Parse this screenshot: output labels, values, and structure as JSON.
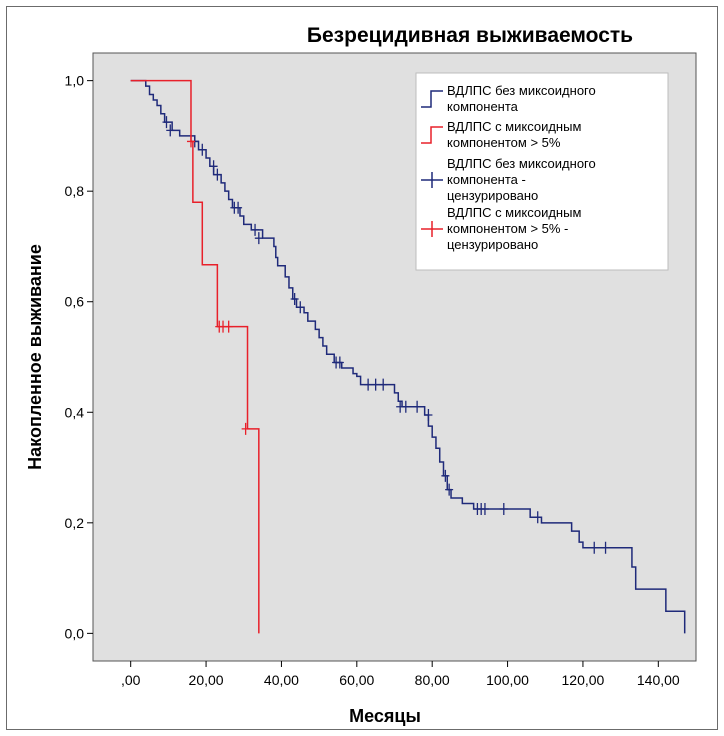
{
  "chart_data": {
    "type": "line",
    "subtype": "kaplan-meier",
    "title": "Безрецидивная выживаемость",
    "xlabel": "Месяцы",
    "ylabel": "Накопленное выживание",
    "xlim": [
      -10,
      150
    ],
    "ylim": [
      -0.05,
      1.05
    ],
    "xticks": [
      0,
      20,
      40,
      60,
      80,
      100,
      120,
      140
    ],
    "xtick_labels": [
      ",00",
      "20,00",
      "40,00",
      "60,00",
      "80,00",
      "100,00",
      "120,00",
      "140,00"
    ],
    "yticks": [
      0,
      0.2,
      0.4,
      0.6,
      0.8,
      1.0
    ],
    "ytick_labels": [
      "0,0",
      "0,2",
      "0,4",
      "0,6",
      "0,8",
      "1,0"
    ],
    "grid": false,
    "background_color": "#e0e0e0",
    "legend_placement": "top-right",
    "legend": [
      {
        "label": "ВДЛПС без миксоидного компонента",
        "kind": "step",
        "series": 0
      },
      {
        "label": "ВДЛПС с миксоидным компонентом > 5%",
        "kind": "step",
        "series": 1
      },
      {
        "label": "ВДЛПС без миксоидного компонента - цензурировано",
        "kind": "censor",
        "series": 0
      },
      {
        "label": "ВДЛПС с миксоидным компонентом > 5% - цензурировано",
        "kind": "censor",
        "series": 1
      }
    ],
    "series": [
      {
        "name": "ВДЛПС без миксоидного компонента",
        "color": "#1f2a7a",
        "steps": [
          [
            0,
            1.0
          ],
          [
            4,
            0.99
          ],
          [
            5,
            0.975
          ],
          [
            6,
            0.965
          ],
          [
            7,
            0.955
          ],
          [
            8,
            0.94
          ],
          [
            9,
            0.925
          ],
          [
            11,
            0.91
          ],
          [
            13,
            0.9
          ],
          [
            17,
            0.89
          ],
          [
            18,
            0.875
          ],
          [
            20,
            0.86
          ],
          [
            21,
            0.845
          ],
          [
            22,
            0.83
          ],
          [
            24,
            0.815
          ],
          [
            25,
            0.8
          ],
          [
            26,
            0.785
          ],
          [
            27,
            0.77
          ],
          [
            29,
            0.755
          ],
          [
            30,
            0.74
          ],
          [
            32,
            0.73
          ],
          [
            35,
            0.715
          ],
          [
            38,
            0.7
          ],
          [
            38.5,
            0.68
          ],
          [
            39,
            0.665
          ],
          [
            41,
            0.645
          ],
          [
            42,
            0.625
          ],
          [
            43,
            0.605
          ],
          [
            44,
            0.59
          ],
          [
            46,
            0.58
          ],
          [
            47,
            0.565
          ],
          [
            49,
            0.55
          ],
          [
            50,
            0.535
          ],
          [
            51,
            0.52
          ],
          [
            52,
            0.505
          ],
          [
            54,
            0.49
          ],
          [
            56,
            0.48
          ],
          [
            59,
            0.47
          ],
          [
            60,
            0.465
          ],
          [
            61,
            0.45
          ],
          [
            70,
            0.435
          ],
          [
            71,
            0.42
          ],
          [
            72,
            0.41
          ],
          [
            78,
            0.395
          ],
          [
            79,
            0.375
          ],
          [
            80,
            0.355
          ],
          [
            81,
            0.335
          ],
          [
            82,
            0.31
          ],
          [
            83,
            0.285
          ],
          [
            84,
            0.26
          ],
          [
            85,
            0.245
          ],
          [
            88,
            0.235
          ],
          [
            91,
            0.225
          ],
          [
            100,
            0.225
          ],
          [
            106,
            0.21
          ],
          [
            109,
            0.2
          ],
          [
            117,
            0.185
          ],
          [
            119,
            0.165
          ],
          [
            120,
            0.155
          ],
          [
            133,
            0.12
          ],
          [
            134,
            0.08
          ],
          [
            142,
            0.04
          ],
          [
            147,
            0.0
          ]
        ],
        "end_x": 147,
        "censored": [
          [
            9.5,
            0.925
          ],
          [
            10.5,
            0.91
          ],
          [
            17,
            0.89
          ],
          [
            19,
            0.875
          ],
          [
            22,
            0.845
          ],
          [
            23,
            0.83
          ],
          [
            27.5,
            0.77
          ],
          [
            28.5,
            0.77
          ],
          [
            33,
            0.73
          ],
          [
            34,
            0.715
          ],
          [
            43.5,
            0.605
          ],
          [
            45,
            0.59
          ],
          [
            54.5,
            0.49
          ],
          [
            55.5,
            0.49
          ],
          [
            63,
            0.45
          ],
          [
            65,
            0.45
          ],
          [
            67,
            0.45
          ],
          [
            71.5,
            0.41
          ],
          [
            73,
            0.41
          ],
          [
            76,
            0.41
          ],
          [
            79,
            0.395
          ],
          [
            83.5,
            0.285
          ],
          [
            84.5,
            0.26
          ],
          [
            92,
            0.225
          ],
          [
            93,
            0.225
          ],
          [
            94,
            0.225
          ],
          [
            99,
            0.225
          ],
          [
            108,
            0.21
          ],
          [
            123,
            0.155
          ],
          [
            126,
            0.155
          ]
        ]
      },
      {
        "name": "ВДЛПС с миксоидным компонентом > 5%",
        "color": "#e8202a",
        "steps": [
          [
            0,
            1.0
          ],
          [
            16,
            0.89
          ],
          [
            16.5,
            0.78
          ],
          [
            19,
            0.667
          ],
          [
            23,
            0.555
          ],
          [
            31,
            0.37
          ],
          [
            34,
            0.0
          ]
        ],
        "end_x": 34,
        "censored": [
          [
            16,
            0.89
          ],
          [
            23.5,
            0.555
          ],
          [
            24.5,
            0.555
          ],
          [
            26,
            0.555
          ],
          [
            30.5,
            0.37
          ]
        ]
      }
    ]
  }
}
